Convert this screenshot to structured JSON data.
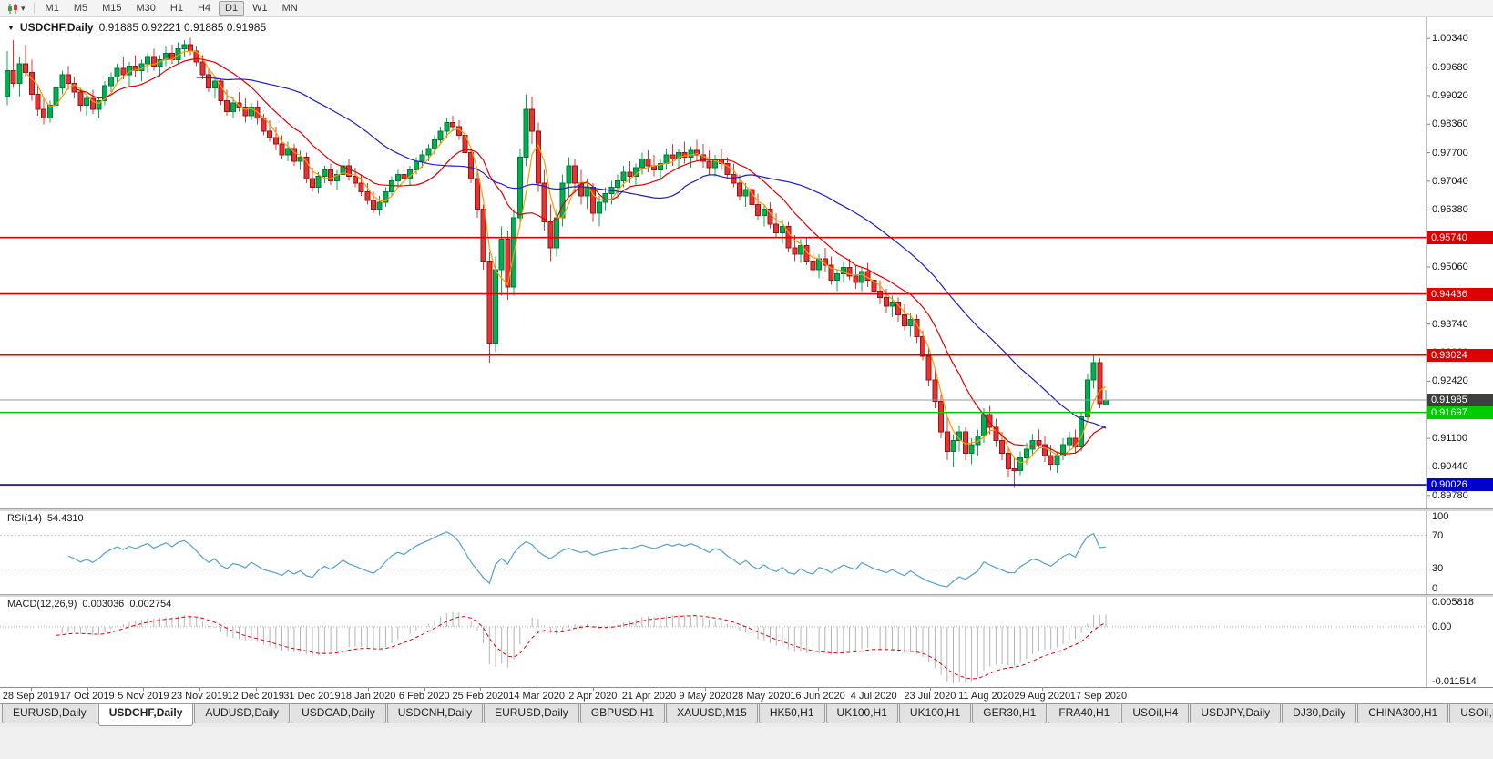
{
  "toolbar": {
    "timeframes": [
      "M1",
      "M5",
      "M15",
      "M30",
      "H1",
      "H4",
      "D1",
      "W1",
      "MN"
    ],
    "active_timeframe": "D1",
    "caret": "▾"
  },
  "chart_header": {
    "marker": "▼",
    "symbol_title": "USDCHF,Daily",
    "ohlc_text": "0.91885 0.92221 0.91885 0.91985"
  },
  "chart_data": {
    "type": "candlestick",
    "symbol": "USDCHF",
    "timeframe": "Daily",
    "x_axis_dates": [
      "28 Sep 2019",
      "17 Oct 2019",
      "5 Nov 2019",
      "23 Nov 2019",
      "12 Dec 2019",
      "31 Dec 2019",
      "18 Jan 2020",
      "6 Feb 2020",
      "25 Feb 2020",
      "14 Mar 2020",
      "2 Apr 2020",
      "21 Apr 2020",
      "9 May 2020",
      "28 May 2020",
      "16 Jun 2020",
      "4 Jul 2020",
      "23 Jul 2020",
      "11 Aug 2020",
      "29 Aug 2020",
      "17 Sep 2020"
    ],
    "price_axis_ticks": [
      "1.00340",
      "0.99680",
      "0.99020",
      "0.98360",
      "0.97700",
      "0.97040",
      "0.96380",
      "0.95720",
      "0.95060",
      "0.94400",
      "0.93740",
      "0.93080",
      "0.92420",
      "0.91760",
      "0.91100",
      "0.90440",
      "0.89780"
    ],
    "colors": {
      "background": "#ffffff",
      "up": "#00b050",
      "up_border": "#007a38",
      "down": "#e43434",
      "down_border": "#9b1313"
    },
    "moving_averages": [
      {
        "name": "fast",
        "color": "#ff9a00"
      },
      {
        "name": "medium",
        "color": "#e00000"
      },
      {
        "name": "slow",
        "color": "#2020c0"
      }
    ],
    "horizontal_lines": [
      {
        "price": 0.9574,
        "label": "0.95740",
        "color": "#dd0000"
      },
      {
        "price": 0.94436,
        "label": "0.94436",
        "color": "#dd0000"
      },
      {
        "price": 0.93024,
        "label": "0.93024",
        "color": "#dd0000"
      },
      {
        "price": 0.91697,
        "label": "0.91697",
        "color": "#00cc00"
      },
      {
        "price": 0.90026,
        "label": "0.90026",
        "color": "#0000cc"
      }
    ],
    "current_price": {
      "value": "0.91985",
      "price": 0.91985,
      "line_color": "#9a9a9a",
      "label_bg": "#3f3f3f"
    },
    "rsi": {
      "name": "RSI(14)",
      "value": "54.4310",
      "color": "#53a0d4",
      "levels": [
        70,
        30
      ],
      "axis_labels": [
        "100",
        "70",
        "30",
        "0"
      ]
    },
    "macd": {
      "name": "MACD(12,26,9)",
      "value_macd": "0.003036",
      "value_signal": "0.002754",
      "histogram_color": "#b4b4b4",
      "signal_color": "#e00000",
      "axis_labels": [
        "0.005818",
        "0.00",
        "-0.011514"
      ]
    },
    "candles": [
      [
        0.99,
        1.0005,
        0.988,
        0.996
      ],
      [
        0.996,
        1.003,
        0.992,
        0.993
      ],
      [
        0.993,
        0.999,
        0.99,
        0.9975
      ],
      [
        0.9975,
        1.002,
        0.9945,
        0.9955
      ],
      [
        0.9955,
        0.9985,
        0.989,
        0.9905
      ],
      [
        0.9905,
        0.9925,
        0.9855,
        0.987
      ],
      [
        0.987,
        0.9895,
        0.9835,
        0.985
      ],
      [
        0.985,
        0.989,
        0.984,
        0.988
      ],
      [
        0.988,
        0.993,
        0.987,
        0.992
      ],
      [
        0.992,
        0.996,
        0.9905,
        0.995
      ],
      [
        0.995,
        0.997,
        0.9915,
        0.993
      ],
      [
        0.993,
        0.9945,
        0.9895,
        0.991
      ],
      [
        0.991,
        0.992,
        0.9865,
        0.988
      ],
      [
        0.988,
        0.9905,
        0.9855,
        0.9895
      ],
      [
        0.9895,
        0.9915,
        0.986,
        0.987
      ],
      [
        0.987,
        0.99,
        0.985,
        0.989
      ],
      [
        0.989,
        0.9935,
        0.988,
        0.9925
      ],
      [
        0.9925,
        0.9955,
        0.991,
        0.9945
      ],
      [
        0.9945,
        0.9975,
        0.993,
        0.9965
      ],
      [
        0.9965,
        0.999,
        0.994,
        0.995
      ],
      [
        0.995,
        0.998,
        0.9925,
        0.997
      ],
      [
        0.997,
        0.9995,
        0.9945,
        0.996
      ],
      [
        0.996,
        0.9985,
        0.9935,
        0.9975
      ],
      [
        0.9975,
        1.0,
        0.9955,
        0.999
      ],
      [
        0.999,
        1.001,
        0.996,
        0.997
      ],
      [
        0.997,
        0.9995,
        0.9945,
        0.9985
      ],
      [
        0.9985,
        1.0015,
        0.997,
        1.0
      ],
      [
        1.0,
        1.002,
        0.9975,
        0.9985
      ],
      [
        0.9985,
        1.0025,
        0.9975,
        1.001
      ],
      [
        1.001,
        1.003,
        0.999,
        1.002
      ],
      [
        1.002,
        1.0035,
        0.9995,
        1.0005
      ],
      [
        1.0005,
        1.0015,
        0.997,
        0.998
      ],
      [
        0.998,
        0.9995,
        0.994,
        0.995
      ],
      [
        0.995,
        0.9965,
        0.991,
        0.992
      ],
      [
        0.992,
        0.9945,
        0.9895,
        0.9935
      ],
      [
        0.9935,
        0.994,
        0.988,
        0.989
      ],
      [
        0.989,
        0.9915,
        0.9855,
        0.9865
      ],
      [
        0.9865,
        0.99,
        0.985,
        0.9885
      ],
      [
        0.9885,
        0.991,
        0.9865,
        0.9875
      ],
      [
        0.9875,
        0.9895,
        0.984,
        0.9855
      ],
      [
        0.9855,
        0.9885,
        0.9845,
        0.9875
      ],
      [
        0.9875,
        0.989,
        0.9835,
        0.985
      ],
      [
        0.985,
        0.986,
        0.981,
        0.982
      ],
      [
        0.982,
        0.9845,
        0.9795,
        0.9805
      ],
      [
        0.9805,
        0.983,
        0.9775,
        0.979
      ],
      [
        0.979,
        0.981,
        0.9755,
        0.9765
      ],
      [
        0.9765,
        0.9795,
        0.975,
        0.978
      ],
      [
        0.978,
        0.979,
        0.974,
        0.975
      ],
      [
        0.975,
        0.9775,
        0.973,
        0.976
      ],
      [
        0.976,
        0.977,
        0.97,
        0.971
      ],
      [
        0.971,
        0.9735,
        0.968,
        0.969
      ],
      [
        0.969,
        0.9725,
        0.9675,
        0.9715
      ],
      [
        0.9715,
        0.974,
        0.97,
        0.973
      ],
      [
        0.973,
        0.9745,
        0.9695,
        0.9705
      ],
      [
        0.9705,
        0.973,
        0.9685,
        0.972
      ],
      [
        0.972,
        0.975,
        0.971,
        0.974
      ],
      [
        0.974,
        0.9755,
        0.9705,
        0.9715
      ],
      [
        0.9715,
        0.9735,
        0.969,
        0.97
      ],
      [
        0.97,
        0.972,
        0.967,
        0.968
      ],
      [
        0.968,
        0.97,
        0.965,
        0.966
      ],
      [
        0.966,
        0.968,
        0.963,
        0.964
      ],
      [
        0.964,
        0.967,
        0.9625,
        0.9655
      ],
      [
        0.9655,
        0.969,
        0.9645,
        0.968
      ],
      [
        0.968,
        0.9715,
        0.967,
        0.9705
      ],
      [
        0.9705,
        0.973,
        0.969,
        0.972
      ],
      [
        0.972,
        0.9745,
        0.97,
        0.971
      ],
      [
        0.971,
        0.974,
        0.9695,
        0.973
      ],
      [
        0.973,
        0.976,
        0.972,
        0.975
      ],
      [
        0.975,
        0.9775,
        0.9735,
        0.9765
      ],
      [
        0.9765,
        0.979,
        0.975,
        0.978
      ],
      [
        0.978,
        0.981,
        0.9765,
        0.98
      ],
      [
        0.98,
        0.983,
        0.979,
        0.982
      ],
      [
        0.982,
        0.985,
        0.9805,
        0.984
      ],
      [
        0.984,
        0.9855,
        0.982,
        0.983
      ],
      [
        0.983,
        0.9845,
        0.98,
        0.981
      ],
      [
        0.981,
        0.982,
        0.976,
        0.977
      ],
      [
        0.977,
        0.978,
        0.97,
        0.971
      ],
      [
        0.971,
        0.973,
        0.962,
        0.964
      ],
      [
        0.964,
        0.965,
        0.95,
        0.952
      ],
      [
        0.952,
        0.954,
        0.9285,
        0.933
      ],
      [
        0.933,
        0.953,
        0.931,
        0.95
      ],
      [
        0.95,
        0.96,
        0.944,
        0.957
      ],
      [
        0.957,
        0.959,
        0.943,
        0.946
      ],
      [
        0.946,
        0.964,
        0.944,
        0.962
      ],
      [
        0.962,
        0.978,
        0.96,
        0.976
      ],
      [
        0.976,
        0.9905,
        0.974,
        0.987
      ],
      [
        0.987,
        0.99,
        0.979,
        0.982
      ],
      [
        0.982,
        0.984,
        0.968,
        0.97
      ],
      [
        0.97,
        0.973,
        0.959,
        0.961
      ],
      [
        0.961,
        0.965,
        0.952,
        0.955
      ],
      [
        0.955,
        0.964,
        0.953,
        0.962
      ],
      [
        0.962,
        0.972,
        0.96,
        0.97
      ],
      [
        0.97,
        0.976,
        0.967,
        0.974
      ],
      [
        0.974,
        0.9755,
        0.968,
        0.97
      ],
      [
        0.97,
        0.973,
        0.965,
        0.967
      ],
      [
        0.967,
        0.971,
        0.964,
        0.969
      ],
      [
        0.969,
        0.97,
        0.961,
        0.963
      ],
      [
        0.963,
        0.967,
        0.96,
        0.9655
      ],
      [
        0.9655,
        0.969,
        0.9635,
        0.9675
      ],
      [
        0.9675,
        0.9705,
        0.965,
        0.969
      ],
      [
        0.969,
        0.972,
        0.9665,
        0.9705
      ],
      [
        0.9705,
        0.974,
        0.969,
        0.9725
      ],
      [
        0.9725,
        0.975,
        0.97,
        0.9715
      ],
      [
        0.9715,
        0.9745,
        0.9695,
        0.9735
      ],
      [
        0.9735,
        0.977,
        0.972,
        0.9755
      ],
      [
        0.9755,
        0.9775,
        0.9725,
        0.974
      ],
      [
        0.974,
        0.9765,
        0.9715,
        0.973
      ],
      [
        0.973,
        0.9755,
        0.9705,
        0.9745
      ],
      [
        0.9745,
        0.978,
        0.973,
        0.9765
      ],
      [
        0.9765,
        0.979,
        0.974,
        0.9755
      ],
      [
        0.9755,
        0.978,
        0.973,
        0.977
      ],
      [
        0.977,
        0.9795,
        0.9745,
        0.976
      ],
      [
        0.976,
        0.9785,
        0.9735,
        0.9775
      ],
      [
        0.9775,
        0.98,
        0.975,
        0.9765
      ],
      [
        0.9765,
        0.979,
        0.9735,
        0.975
      ],
      [
        0.975,
        0.9775,
        0.972,
        0.9735
      ],
      [
        0.9735,
        0.9765,
        0.9715,
        0.9755
      ],
      [
        0.9755,
        0.978,
        0.973,
        0.9745
      ],
      [
        0.9745,
        0.976,
        0.971,
        0.972
      ],
      [
        0.972,
        0.9745,
        0.969,
        0.97
      ],
      [
        0.97,
        0.972,
        0.966,
        0.967
      ],
      [
        0.967,
        0.97,
        0.9645,
        0.9685
      ],
      [
        0.9685,
        0.9695,
        0.964,
        0.965
      ],
      [
        0.965,
        0.9675,
        0.9615,
        0.9625
      ],
      [
        0.9625,
        0.965,
        0.96,
        0.964
      ],
      [
        0.964,
        0.9655,
        0.9595,
        0.9605
      ],
      [
        0.9605,
        0.963,
        0.9575,
        0.9585
      ],
      [
        0.9585,
        0.9615,
        0.956,
        0.96
      ],
      [
        0.96,
        0.961,
        0.954,
        0.955
      ],
      [
        0.955,
        0.958,
        0.952,
        0.9535
      ],
      [
        0.9535,
        0.957,
        0.9515,
        0.9555
      ],
      [
        0.9555,
        0.9575,
        0.951,
        0.952
      ],
      [
        0.952,
        0.9545,
        0.949,
        0.95
      ],
      [
        0.95,
        0.9535,
        0.948,
        0.9525
      ],
      [
        0.9525,
        0.955,
        0.9495,
        0.951
      ],
      [
        0.951,
        0.953,
        0.9465,
        0.9475
      ],
      [
        0.9475,
        0.95,
        0.945,
        0.949
      ],
      [
        0.949,
        0.952,
        0.947,
        0.9505
      ],
      [
        0.9505,
        0.9525,
        0.9475,
        0.9485
      ],
      [
        0.9485,
        0.951,
        0.9455,
        0.947
      ],
      [
        0.947,
        0.9505,
        0.945,
        0.9495
      ],
      [
        0.9495,
        0.9515,
        0.946,
        0.9475
      ],
      [
        0.9475,
        0.949,
        0.9435,
        0.945
      ],
      [
        0.945,
        0.9475,
        0.942,
        0.9435
      ],
      [
        0.9435,
        0.9455,
        0.94,
        0.9415
      ],
      [
        0.9415,
        0.944,
        0.939,
        0.9425
      ],
      [
        0.9425,
        0.9435,
        0.938,
        0.9395
      ],
      [
        0.9395,
        0.942,
        0.936,
        0.937
      ],
      [
        0.937,
        0.94,
        0.9345,
        0.9385
      ],
      [
        0.9385,
        0.9395,
        0.933,
        0.9345
      ],
      [
        0.9345,
        0.936,
        0.929,
        0.93
      ],
      [
        0.93,
        0.932,
        0.923,
        0.9245
      ],
      [
        0.9245,
        0.927,
        0.918,
        0.9195
      ],
      [
        0.9195,
        0.921,
        0.911,
        0.9125
      ],
      [
        0.9125,
        0.916,
        0.906,
        0.908
      ],
      [
        0.908,
        0.912,
        0.9045,
        0.9105
      ],
      [
        0.9105,
        0.914,
        0.908,
        0.9125
      ],
      [
        0.9125,
        0.9135,
        0.906,
        0.9075
      ],
      [
        0.9075,
        0.911,
        0.905,
        0.9095
      ],
      [
        0.9095,
        0.913,
        0.907,
        0.9115
      ],
      [
        0.9115,
        0.918,
        0.91,
        0.9165
      ],
      [
        0.9165,
        0.9185,
        0.912,
        0.9135
      ],
      [
        0.9135,
        0.9155,
        0.909,
        0.9105
      ],
      [
        0.9105,
        0.9125,
        0.906,
        0.9075
      ],
      [
        0.9075,
        0.909,
        0.902,
        0.904
      ],
      [
        0.904,
        0.9065,
        0.8995,
        0.9035
      ],
      [
        0.9035,
        0.908,
        0.9025,
        0.9065
      ],
      [
        0.9065,
        0.91,
        0.905,
        0.9085
      ],
      [
        0.9085,
        0.912,
        0.907,
        0.9105
      ],
      [
        0.9105,
        0.913,
        0.9085,
        0.9095
      ],
      [
        0.9095,
        0.9115,
        0.9055,
        0.907
      ],
      [
        0.907,
        0.9095,
        0.9035,
        0.905
      ],
      [
        0.905,
        0.908,
        0.903,
        0.907
      ],
      [
        0.907,
        0.911,
        0.906,
        0.9095
      ],
      [
        0.9095,
        0.9125,
        0.908,
        0.911
      ],
      [
        0.911,
        0.913,
        0.9075,
        0.909
      ],
      [
        0.909,
        0.917,
        0.908,
        0.916
      ],
      [
        0.916,
        0.926,
        0.915,
        0.9245
      ],
      [
        0.9245,
        0.9302,
        0.9225,
        0.9285
      ],
      [
        0.9285,
        0.9295,
        0.918,
        0.919
      ],
      [
        0.91885,
        0.92221,
        0.91885,
        0.91985
      ]
    ]
  },
  "tabs": {
    "items": [
      {
        "label": "EURUSD,Daily",
        "active": false
      },
      {
        "label": "USDCHF,Daily",
        "active": true
      },
      {
        "label": "AUDUSD,Daily",
        "active": false
      },
      {
        "label": "USDCAD,Daily",
        "active": false
      },
      {
        "label": "USDCNH,Daily",
        "active": false
      },
      {
        "label": "EURUSD,Daily",
        "active": false
      },
      {
        "label": "GBPUSD,H1",
        "active": false
      },
      {
        "label": "XAUUSD,M15",
        "active": false
      },
      {
        "label": "HK50,H1",
        "active": false
      },
      {
        "label": "UK100,H1",
        "active": false
      },
      {
        "label": "UK100,H1",
        "active": false
      },
      {
        "label": "GER30,H1",
        "active": false
      },
      {
        "label": "FRA40,H1",
        "active": false
      },
      {
        "label": "USOil,H4",
        "active": false
      },
      {
        "label": "USDJPY,Daily",
        "active": false
      },
      {
        "label": "DJ30,Daily",
        "active": false
      },
      {
        "label": "CHINA300,H1",
        "active": false
      },
      {
        "label": "USOil,H1",
        "active": false
      }
    ]
  }
}
